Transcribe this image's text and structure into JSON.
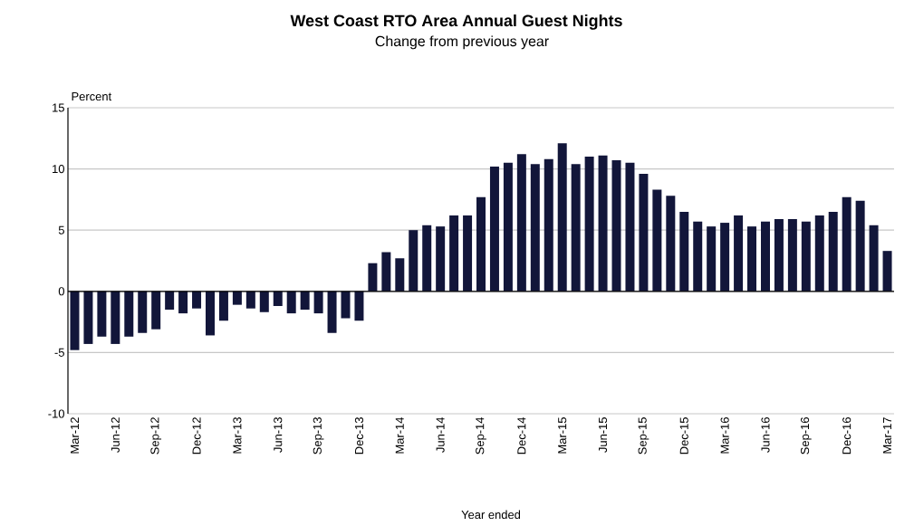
{
  "chart_data": {
    "type": "bar",
    "title": "West Coast RTO Area Annual Guest Nights",
    "subtitle": "Change from previous year",
    "xlabel": "Year ended",
    "ylabel": "Percent",
    "categories": [
      "Mar-12",
      null,
      null,
      "Jun-12",
      null,
      null,
      "Sep-12",
      null,
      null,
      "Dec-12",
      null,
      null,
      "Mar-13",
      null,
      null,
      "Jun-13",
      null,
      null,
      "Sep-13",
      null,
      null,
      "Dec-13",
      null,
      null,
      "Mar-14",
      null,
      null,
      "Jun-14",
      null,
      null,
      "Sep-14",
      null,
      null,
      "Dec-14",
      null,
      null,
      "Mar-15",
      null,
      null,
      "Jun-15",
      null,
      null,
      "Sep-15",
      null,
      null,
      "Dec-15",
      null,
      null,
      "Mar-16",
      null,
      null,
      "Jun-16",
      null,
      null,
      "Sep-16",
      null,
      null,
      "Dec-16",
      null,
      null,
      "Mar-17"
    ],
    "values": [
      -4.8,
      -4.3,
      -3.7,
      -4.3,
      -3.7,
      -3.4,
      -3.1,
      -1.5,
      -1.8,
      -1.4,
      -3.6,
      -2.4,
      -1.1,
      -1.4,
      -1.7,
      -1.2,
      -1.8,
      -1.5,
      -1.8,
      -3.4,
      -2.2,
      -2.4,
      2.3,
      3.2,
      2.7,
      5.0,
      5.4,
      5.3,
      6.2,
      6.2,
      7.7,
      10.2,
      10.5,
      11.2,
      10.4,
      10.8,
      12.1,
      10.4,
      11.0,
      11.1,
      10.7,
      10.5,
      9.6,
      8.3,
      7.8,
      6.5,
      5.7,
      5.3,
      5.6,
      6.2,
      5.3,
      5.7,
      5.9,
      5.9,
      5.7,
      6.2,
      6.5,
      7.7,
      7.4,
      5.4,
      3.3
    ],
    "color": "#12163a",
    "ylim": [
      -10,
      15
    ],
    "yticks": [
      -10,
      -5,
      0,
      5,
      10,
      15
    ],
    "grid": "y"
  }
}
